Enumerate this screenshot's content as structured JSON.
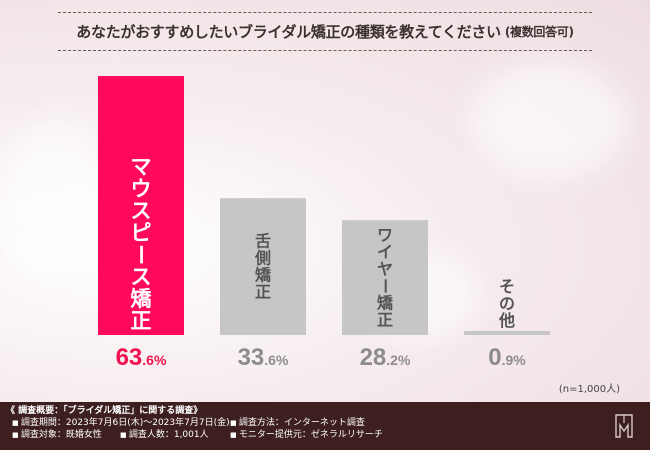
{
  "title": "あなたがおすすめしたいブライダル矯正の種類を教えてください",
  "title_note": "(複数回答可)",
  "chart_data": {
    "type": "bar",
    "title": "あなたがおすすめしたいブライダル矯正の種類を教えてください (複数回答可)",
    "categories": [
      "マウスピース矯正",
      "舌側矯正",
      "ワイヤー矯正",
      "その他"
    ],
    "values": [
      63.6,
      33.6,
      28.2,
      0.9
    ],
    "labels": [
      {
        "int": "63",
        "dec": ".6%"
      },
      {
        "int": "33",
        "dec": ".6%"
      },
      {
        "int": "28",
        "dec": ".2%"
      },
      {
        "int": "0",
        "dec": ".9%"
      }
    ],
    "ylim": [
      0,
      70
    ],
    "unit": "%",
    "grid": false,
    "colors": {
      "highlight": "#ff0a5a",
      "highlight_text": "#f0124f",
      "other": "#c6c6c6",
      "other_text": "#8c8c8c",
      "bar_label_text": "#555555"
    }
  },
  "sample_note": "(n=1,000人)",
  "footer": {
    "heading": "《 調査概要：「ブライダル矯正」に関する調査》",
    "items": [
      "調査期間：2023年7月6日(木)～2023年7月7日(金)",
      "調査方法：インターネット調査",
      "調査対象：既婚女性",
      "調査人数：1,001人",
      "モニター提供元：ゼネラルリサーチ"
    ]
  },
  "logo_icon": "tooth-logo-icon"
}
